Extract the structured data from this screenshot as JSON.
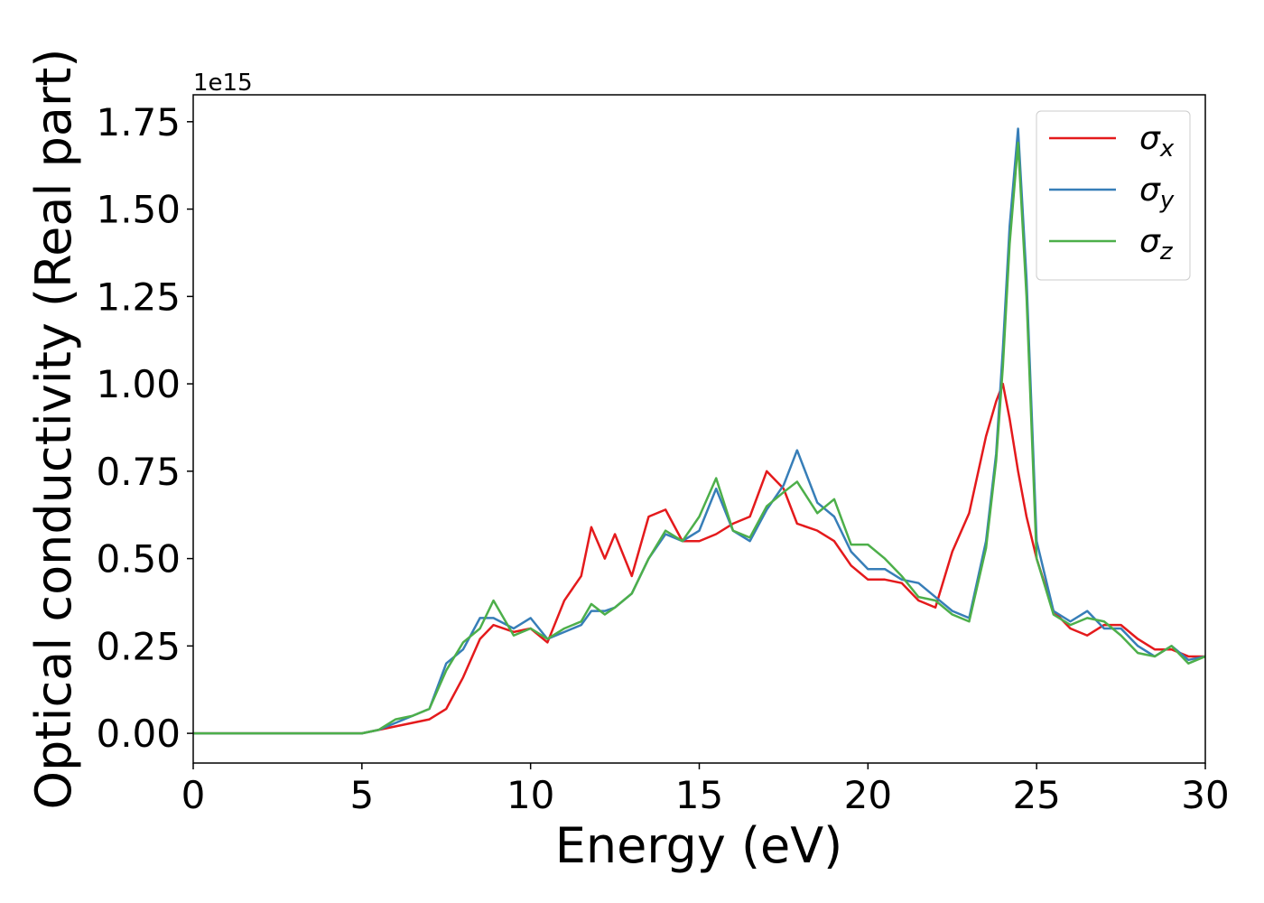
{
  "chart_data": {
    "type": "line",
    "xlabel": "Energy (eV)",
    "ylabel": "Optical conductivity (Real part)",
    "y_offset_label": "1e15",
    "xlim": [
      0,
      30
    ],
    "xticks": [
      0,
      5,
      10,
      15,
      20,
      25,
      30
    ],
    "ylim": [
      -0.085,
      1.827
    ],
    "yticks": [
      {
        "value": 0,
        "label": "0.00"
      },
      {
        "value": 0.25,
        "label": "0.25"
      },
      {
        "value": 0.5,
        "label": "0.50"
      },
      {
        "value": 0.75,
        "label": "0.75"
      },
      {
        "value": 1,
        "label": "1.00"
      },
      {
        "value": 1.25,
        "label": "1.25"
      },
      {
        "value": 1.5,
        "label": "1.50"
      },
      {
        "value": 1.75,
        "label": "1.75"
      }
    ],
    "legend": "upper right",
    "x": [
      0,
      1,
      2,
      3,
      4,
      5,
      5.5,
      6,
      6.5,
      7,
      7.5,
      8,
      8.5,
      8.9,
      9.5,
      10,
      10.5,
      11,
      11.5,
      11.8,
      12.2,
      12.5,
      13,
      13.5,
      14,
      14.5,
      15,
      15.5,
      16,
      16.5,
      17,
      17.5,
      17.9,
      18.5,
      19,
      19.5,
      20,
      20.5,
      21,
      21.5,
      22,
      22.5,
      23,
      23.5,
      23.8,
      24,
      24.2,
      24.45,
      24.7,
      25,
      25.5,
      26,
      26.5,
      27,
      27.5,
      28,
      28.5,
      29,
      29.5,
      30
    ],
    "series": [
      {
        "name": "σx",
        "color": "#e41a1c",
        "values": [
          0,
          0,
          0,
          0,
          0,
          0,
          0.01,
          0.02,
          0.03,
          0.04,
          0.07,
          0.16,
          0.27,
          0.31,
          0.29,
          0.3,
          0.26,
          0.38,
          0.45,
          0.59,
          0.5,
          0.57,
          0.45,
          0.62,
          0.64,
          0.55,
          0.55,
          0.57,
          0.6,
          0.62,
          0.75,
          0.7,
          0.6,
          0.58,
          0.55,
          0.48,
          0.44,
          0.44,
          0.43,
          0.38,
          0.36,
          0.52,
          0.63,
          0.85,
          0.95,
          1.0,
          0.9,
          0.75,
          0.62,
          0.5,
          0.35,
          0.3,
          0.28,
          0.31,
          0.31,
          0.27,
          0.24,
          0.24,
          0.22,
          0.22
        ]
      },
      {
        "name": "σy",
        "color": "#377eb8",
        "values": [
          0,
          0,
          0,
          0,
          0,
          0,
          0.01,
          0.03,
          0.05,
          0.07,
          0.2,
          0.24,
          0.33,
          0.33,
          0.3,
          0.33,
          0.27,
          0.29,
          0.31,
          0.35,
          0.35,
          0.36,
          0.4,
          0.5,
          0.57,
          0.55,
          0.58,
          0.7,
          0.58,
          0.55,
          0.64,
          0.71,
          0.81,
          0.66,
          0.62,
          0.52,
          0.47,
          0.47,
          0.44,
          0.43,
          0.39,
          0.35,
          0.33,
          0.55,
          0.8,
          1.1,
          1.45,
          1.73,
          1.3,
          0.55,
          0.35,
          0.32,
          0.35,
          0.3,
          0.3,
          0.25,
          0.22,
          0.25,
          0.21,
          0.22
        ]
      },
      {
        "name": "σz",
        "color": "#4daf4a",
        "values": [
          0,
          0,
          0,
          0,
          0,
          0,
          0.01,
          0.04,
          0.05,
          0.07,
          0.18,
          0.26,
          0.3,
          0.38,
          0.28,
          0.3,
          0.27,
          0.3,
          0.32,
          0.37,
          0.34,
          0.36,
          0.4,
          0.5,
          0.58,
          0.55,
          0.62,
          0.73,
          0.58,
          0.56,
          0.65,
          0.69,
          0.72,
          0.63,
          0.67,
          0.54,
          0.54,
          0.5,
          0.45,
          0.39,
          0.38,
          0.34,
          0.32,
          0.53,
          0.78,
          1.05,
          1.4,
          1.69,
          1.25,
          0.5,
          0.34,
          0.31,
          0.33,
          0.32,
          0.28,
          0.23,
          0.22,
          0.25,
          0.2,
          0.22
        ]
      }
    ]
  }
}
